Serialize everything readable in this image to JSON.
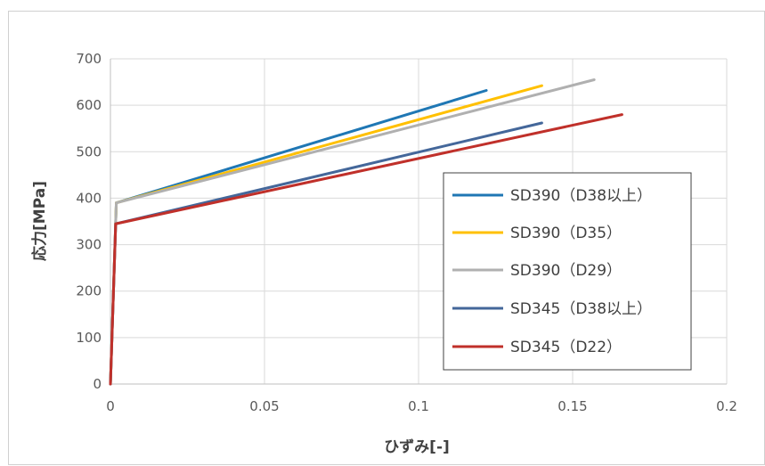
{
  "chart_data": {
    "type": "line",
    "title": "",
    "xlabel": "ひずみ[-]",
    "ylabel": "応力[MPa]",
    "xlim": [
      0,
      0.2
    ],
    "ylim": [
      0,
      700
    ],
    "xticks": [
      0,
      0.05,
      0.1,
      0.15,
      0.2
    ],
    "xtick_labels": [
      "0",
      "0.05",
      "0.1",
      "0.15",
      "0.2"
    ],
    "yticks": [
      0,
      100,
      200,
      300,
      400,
      500,
      600,
      700
    ],
    "ytick_labels": [
      "0",
      "100",
      "200",
      "300",
      "400",
      "500",
      "600",
      "700"
    ],
    "grid": true,
    "legend_position": "right",
    "series": [
      {
        "name": "SD390（D38以上）",
        "color": "#1f77b4",
        "x": [
          0,
          0.0019,
          0.002,
          0.122
        ],
        "y": [
          0,
          390,
          390,
          632
        ]
      },
      {
        "name": "SD390（D35）",
        "color": "#ffc000",
        "x": [
          0,
          0.0019,
          0.002,
          0.14
        ],
        "y": [
          0,
          390,
          390,
          642
        ]
      },
      {
        "name": "SD390（D29）",
        "color": "#b0b0b0",
        "x": [
          0,
          0.0019,
          0.002,
          0.157
        ],
        "y": [
          0,
          390,
          390,
          655
        ]
      },
      {
        "name": "SD345（D38以上）",
        "color": "#44679a",
        "x": [
          0,
          0.0017,
          0.0018,
          0.14
        ],
        "y": [
          0,
          345,
          345,
          562
        ]
      },
      {
        "name": "SD345（D22）",
        "color": "#c0302a",
        "x": [
          0,
          0.0017,
          0.0018,
          0.166
        ],
        "y": [
          0,
          345,
          345,
          580
        ]
      }
    ]
  }
}
